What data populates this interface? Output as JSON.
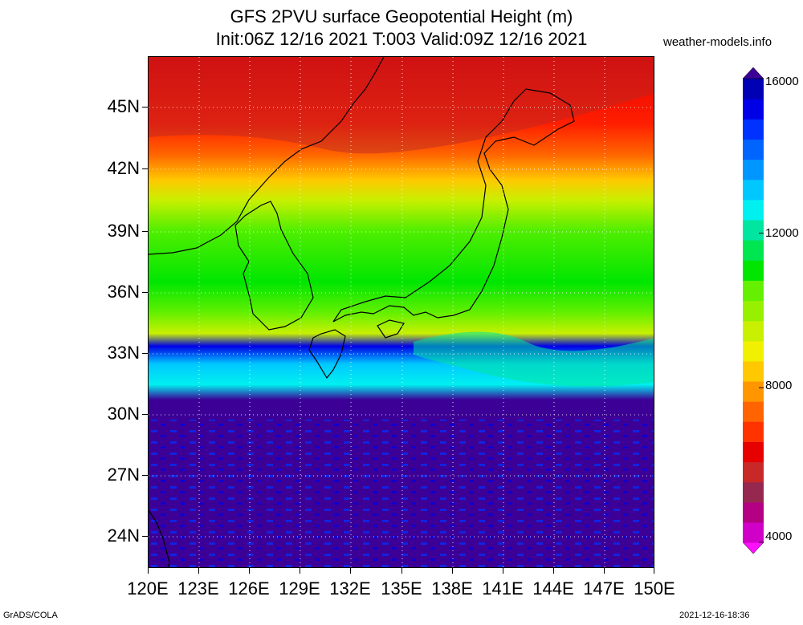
{
  "title_line1": "GFS 2PVU surface Geopotential Height (m)",
  "title_line2": "Init:06Z 12/16 2021 T:003 Valid:09Z 12/16 2021",
  "site": "weather-models.info",
  "lat_labels": [
    "45N",
    "42N",
    "39N",
    "36N",
    "33N",
    "30N",
    "27N",
    "24N"
  ],
  "lon_labels": [
    "120E",
    "123E",
    "126E",
    "129E",
    "132E",
    "135E",
    "138E",
    "141E",
    "144E",
    "147E",
    "150E"
  ],
  "colorbar": {
    "labels": [
      "16000",
      "12000",
      "8000",
      "4000"
    ],
    "colors": [
      "#ff10ff",
      "#d000c8",
      "#b40082",
      "#962850",
      "#c82828",
      "#e60000",
      "#ff3200",
      "#ff6400",
      "#ff9600",
      "#ffc800",
      "#f0f000",
      "#c8f000",
      "#96f000",
      "#64f000",
      "#00e600",
      "#00e650",
      "#00e6a0",
      "#00f0f0",
      "#00c8ff",
      "#0096ff",
      "#0064ff",
      "#0032ff",
      "#0000e6",
      "#0000b4",
      "#3c0096"
    ]
  },
  "footer_left": "GrADS/COLA",
  "footer_right": "2021-12-16-18:36"
}
